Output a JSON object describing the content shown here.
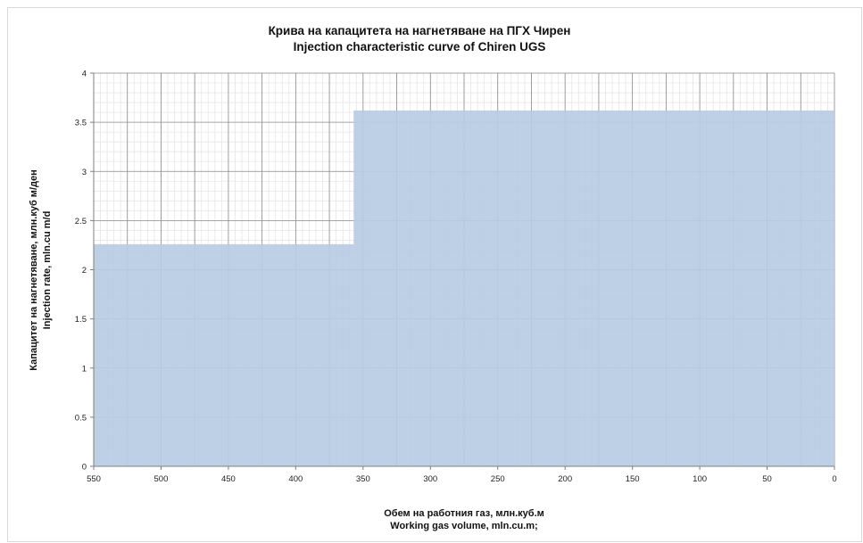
{
  "chart_data": {
    "type": "area",
    "title": "Крива на капацитета на нагнетяване на ПГХ Чирен",
    "subtitle": "Injection characteristic curve of Chiren UGS",
    "xlabel": "Обем на работния газ, млн.куб.м",
    "xlabel2": "Working gas volume, mln.cu.m;",
    "ylabel": "Капацитет на нагнетяване, млн.куб м/ден",
    "ylabel2": "Injection rate, mln.cu m/d",
    "xlim": [
      550,
      0
    ],
    "ylim": [
      0,
      4
    ],
    "x_reversed": true,
    "x_major_ticks": [
      550,
      500,
      450,
      400,
      350,
      300,
      250,
      200,
      150,
      100,
      50,
      0
    ],
    "x_tick_labels": [
      "550",
      "500",
      "450",
      "400",
      "350",
      "300",
      "250",
      "200",
      "150",
      "100",
      "50",
      "0"
    ],
    "y_major_ticks": [
      0,
      0.5,
      1,
      1.5,
      2,
      2.5,
      3,
      3.5,
      4
    ],
    "y_tick_labels": [
      "0",
      "0.5",
      "1",
      "1.5",
      "2",
      "2.5",
      "3",
      "3.5",
      "4"
    ],
    "grid": true,
    "series": [
      {
        "x": [
          550,
          357,
          357,
          0
        ],
        "y": [
          2.26,
          2.26,
          3.62,
          3.62
        ],
        "color": "#b8cce4"
      }
    ]
  }
}
